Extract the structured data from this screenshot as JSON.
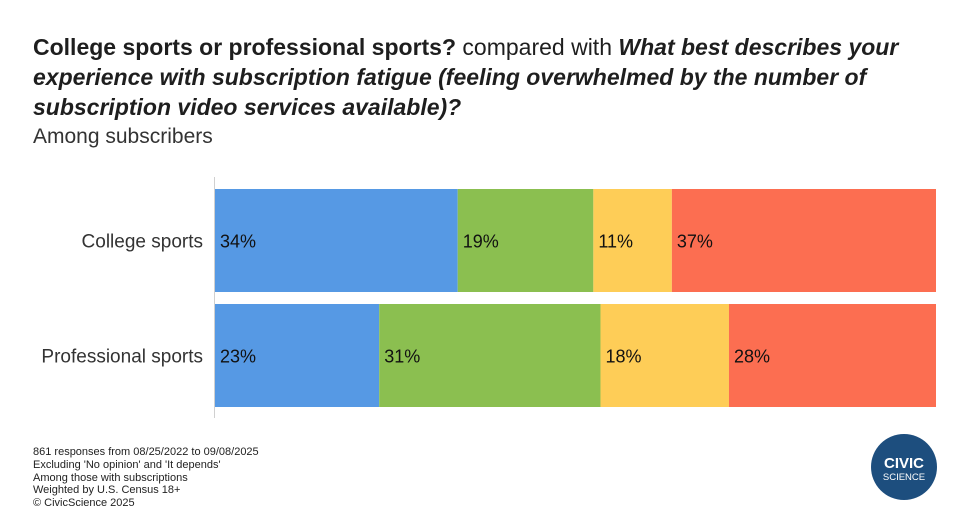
{
  "title": {
    "part1": "College sports or professional sports?",
    "part2": " compared with ",
    "part3": "What best describes your experience with subscription fatigue (feeling overwhelmed by the number of subscription video services available)?"
  },
  "subtitle": "Among subscribers",
  "chart_data": {
    "type": "bar",
    "orientation": "horizontal",
    "stacked": true,
    "categories": [
      "College sports",
      "Professional sports"
    ],
    "series": [
      {
        "values": [
          34,
          23
        ],
        "labels": [
          "34%",
          "23%"
        ],
        "color": "#5699e4"
      },
      {
        "values": [
          19,
          31
        ],
        "labels": [
          "19%",
          "31%"
        ],
        "color": "#8bbf50"
      },
      {
        "values": [
          11,
          18
        ],
        "labels": [
          "11%",
          "18%"
        ],
        "color": "#fecd57"
      },
      {
        "values": [
          37,
          28
        ],
        "labels": [
          "37%",
          "28%"
        ],
        "color": "#fc6e51"
      }
    ],
    "xlim": [
      0,
      101
    ],
    "grid": false,
    "legend": "none"
  },
  "footnotes": [
    "861 responses from 08/25/2022 to 09/08/2025",
    "Excluding 'No opinion' and 'It depends'",
    "Among those with subscriptions",
    "Weighted by U.S. Census 18+",
    "© CivicScience 2025"
  ],
  "logo": {
    "line1": "CIVIC",
    "line2": "SCIENCE",
    "color": "#1d4e7e"
  }
}
